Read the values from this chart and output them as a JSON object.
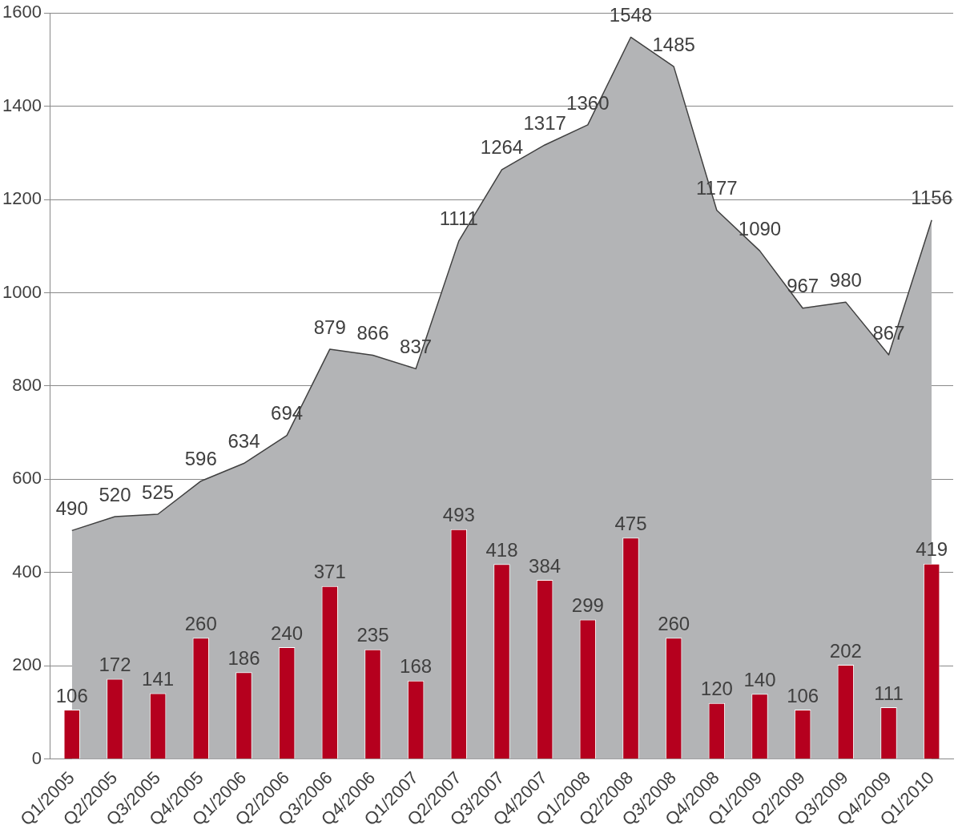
{
  "chart_data": {
    "type": "bar",
    "categories": [
      "Q1/2005",
      "Q2/2005",
      "Q3/2005",
      "Q4/2005",
      "Q1/2006",
      "Q2/2006",
      "Q3/2006",
      "Q4/2006",
      "Q1/2007",
      "Q2/2007",
      "Q3/2007",
      "Q4/2007",
      "Q1/2008",
      "Q2/2008",
      "Q3/2008",
      "Q4/2008",
      "Q1/2009",
      "Q2/2009",
      "Q3/2009",
      "Q4/2009",
      "Q1/2010"
    ],
    "series": [
      {
        "type": "area",
        "color": "#b3b4b6",
        "values": [
          490,
          520,
          525,
          596,
          634,
          694,
          879,
          866,
          837,
          1111,
          1264,
          1317,
          1360,
          1548,
          1485,
          1177,
          1090,
          967,
          980,
          867,
          1156
        ]
      },
      {
        "color": "#b5001e",
        "values": [
          106,
          172,
          141,
          260,
          186,
          240,
          371,
          235,
          168,
          493,
          418,
          384,
          299,
          475,
          260,
          120,
          140,
          106,
          202,
          111,
          419
        ]
      }
    ],
    "ylim": [
      0,
      1600
    ],
    "yticks": [
      0,
      200,
      400,
      600,
      800,
      1000,
      1200,
      1400,
      1600
    ],
    "grid": "y",
    "legend": false,
    "data_labels": true
  }
}
